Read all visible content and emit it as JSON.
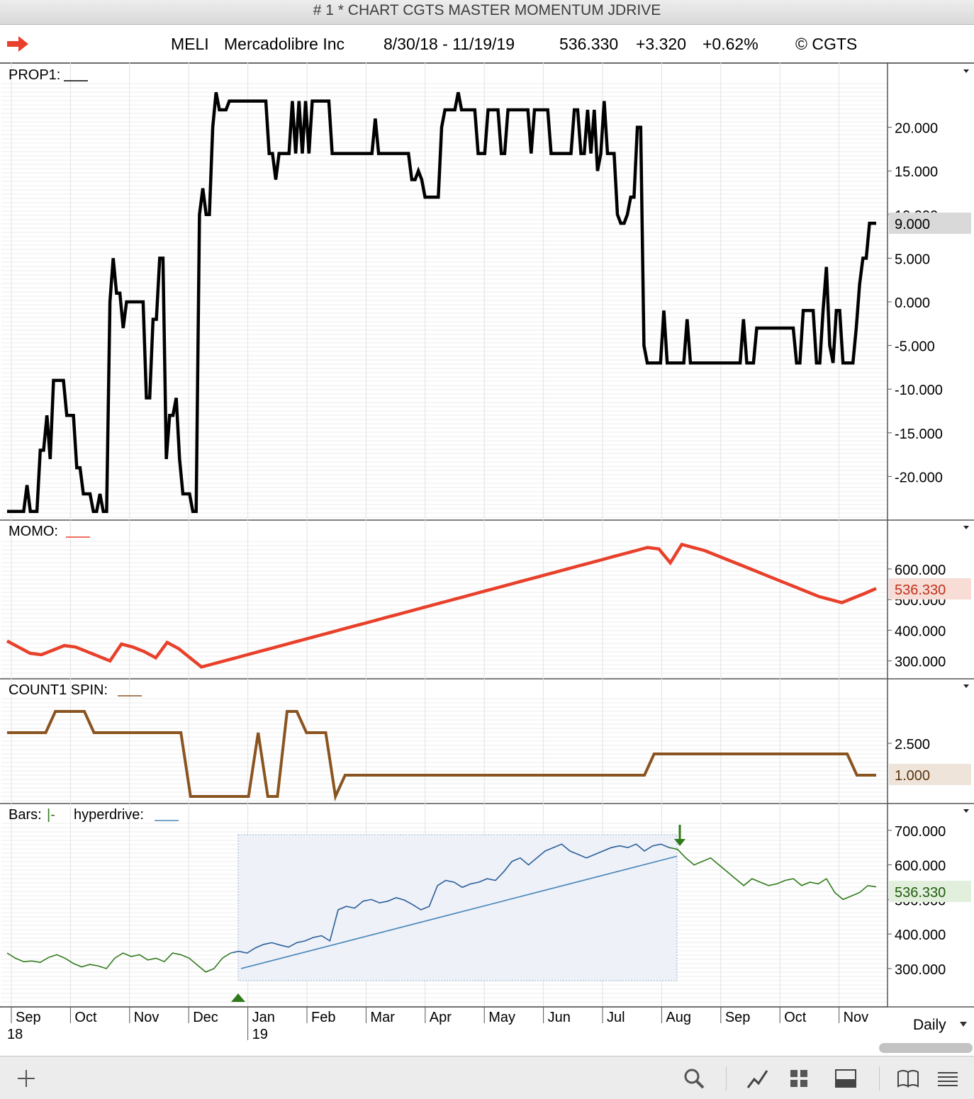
{
  "window": {
    "title": "# 1 * CHART CGTS MASTER MOMENTUM JDRIVE"
  },
  "header": {
    "symbol": "MELI",
    "company": "Mercadolibre Inc",
    "date_range": "8/30/18 - 11/19/19",
    "last_price": "536.330",
    "change": "+3.320",
    "change_pct": "+0.62%",
    "copyright": "© CGTS",
    "arrow_icon": "red-right-arrow-icon",
    "arrow_color": "#e8402a"
  },
  "panels": {
    "prop1": {
      "label": "PROP1:",
      "line_color": "#000000",
      "y_ticks": [
        "20.000",
        "15.000",
        "10.000",
        "5.000",
        "0.000",
        "-5.000",
        "-10.000",
        "-15.000",
        "-20.000"
      ],
      "y_tick_values": [
        20,
        15,
        10,
        5,
        0,
        -5,
        -10,
        -15,
        -20
      ],
      "current_value": "9.000"
    },
    "momo": {
      "label": "MOMO:",
      "line_color": "#e8402a",
      "y_ticks": [
        "600.000",
        "500.000",
        "400.000",
        "300.000"
      ],
      "y_tick_values": [
        600,
        500,
        400,
        300
      ],
      "current_value": "536.330"
    },
    "count1": {
      "label": "COUNT1 SPIN:",
      "line_color": "#8a5420",
      "y_ticks": [
        "2.500"
      ],
      "y_tick_values": [
        2.5
      ],
      "current_value": "1.000"
    },
    "bars": {
      "label": "Bars:",
      "bars_glyph": "|-",
      "overlay_label": "hyperdrive:",
      "overlay_color": "#4a87b8",
      "green_color": "#2f7a1a",
      "blue_color": "#2a5f99",
      "y_ticks": [
        "700.000",
        "600.000",
        "500.000",
        "400.000",
        "300.000"
      ],
      "y_tick_values": [
        700,
        600,
        500,
        400,
        300
      ],
      "current_value": "536.330"
    }
  },
  "x_axis": {
    "months": [
      "Sep",
      "Oct",
      "Nov",
      "Dec",
      "Jan",
      "Feb",
      "Mar",
      "Apr",
      "May",
      "Jun",
      "Jul",
      "Aug",
      "Sep",
      "Oct",
      "Nov"
    ],
    "years": [
      "18",
      "19"
    ],
    "period": "Daily"
  },
  "chart_data": [
    {
      "type": "line",
      "title": "PROP1",
      "series": [
        {
          "name": "PROP1",
          "values": [
            -24,
            -24,
            -24,
            -24,
            -24,
            -24,
            -21,
            -24,
            -24,
            -24,
            -17,
            -17,
            -13,
            -18,
            -9,
            -9,
            -9,
            -9,
            -13,
            -13,
            -13,
            -19,
            -19,
            -22,
            -22,
            -22,
            -24,
            -24,
            -22,
            -24,
            -24,
            0,
            5,
            1,
            1,
            -3,
            0,
            0,
            0,
            0,
            0,
            0,
            -11,
            -11,
            -2,
            -2,
            5,
            5,
            -18,
            -13,
            -13,
            -11,
            -18,
            -22,
            -22,
            -22,
            -24,
            -24,
            10,
            13,
            10,
            10,
            20,
            24,
            22,
            22,
            22,
            23,
            23,
            23,
            23,
            23,
            23,
            23,
            23,
            23,
            23,
            23,
            23,
            17,
            17,
            14,
            17,
            17,
            17,
            17,
            23,
            17,
            23,
            17,
            23,
            17,
            23,
            23,
            23,
            23,
            23,
            23,
            17,
            17,
            17,
            17,
            17,
            17,
            17,
            17,
            17,
            17,
            17,
            17,
            17,
            21,
            17,
            17,
            17,
            17,
            17,
            17,
            17,
            17,
            17,
            17,
            14,
            14,
            15,
            14,
            12,
            12,
            12,
            12,
            12,
            20,
            22,
            22,
            22,
            22,
            24,
            22,
            22,
            22,
            22,
            22,
            17,
            17,
            17,
            22,
            22,
            22,
            22,
            17,
            17,
            22,
            22,
            22,
            22,
            22,
            22,
            22,
            17,
            22,
            22,
            22,
            22,
            22,
            17,
            17,
            17,
            17,
            17,
            17,
            17,
            22,
            22,
            17,
            17,
            22,
            17,
            22,
            15,
            17,
            23,
            17,
            17,
            17,
            10,
            9,
            9,
            10,
            12,
            12,
            20,
            20,
            -5,
            -7,
            -7,
            -7,
            -7,
            -7,
            -1,
            -7,
            -7,
            -7,
            -7,
            -7,
            -7,
            -2,
            -7,
            -7,
            -7,
            -7,
            -7,
            -7,
            -7,
            -7,
            -7,
            -7,
            -7,
            -7,
            -7,
            -7,
            -7,
            -7,
            -2,
            -7,
            -7,
            -7,
            -3,
            -3,
            -3,
            -3,
            -3,
            -3,
            -3,
            -3,
            -3,
            -3,
            -3,
            -3,
            -7,
            -7,
            -1,
            -1,
            -1,
            -1,
            -7,
            -7,
            -1,
            4,
            -5,
            -7,
            -1,
            -1,
            -7,
            -7,
            -7,
            -7,
            -3,
            2,
            5,
            5,
            9,
            9,
            9
          ]
        }
      ],
      "ylim": [
        -25,
        25
      ]
    },
    {
      "type": "line",
      "title": "MOMO",
      "series": [
        {
          "name": "MOMO",
          "values": [
            365,
            345,
            325,
            320,
            335,
            350,
            345,
            330,
            315,
            300,
            355,
            345,
            330,
            310,
            360,
            340,
            310,
            280,
            290,
            300,
            310,
            320,
            330,
            340,
            350,
            360,
            370,
            380,
            390,
            400,
            410,
            420,
            430,
            440,
            450,
            460,
            470,
            480,
            490,
            500,
            510,
            520,
            530,
            540,
            550,
            560,
            570,
            580,
            590,
            600,
            610,
            620,
            630,
            640,
            650,
            660,
            670,
            665,
            620,
            680,
            670,
            660,
            645,
            630,
            615,
            600,
            585,
            570,
            555,
            540,
            525,
            510,
            500,
            490,
            505,
            520,
            536.33
          ]
        }
      ],
      "ylim": [
        260,
        690
      ]
    },
    {
      "type": "line",
      "title": "COUNT1 SPIN",
      "series": [
        {
          "name": "COUNT1 SPIN",
          "values": [
            3,
            3,
            3,
            3,
            3,
            4,
            4,
            4,
            4,
            3,
            3,
            3,
            3,
            3,
            3,
            3,
            3,
            3,
            3,
            0,
            0,
            0,
            0,
            0,
            0,
            0,
            3,
            0,
            0,
            4,
            4,
            3,
            3,
            3,
            0,
            1,
            1,
            1,
            1,
            1,
            1,
            1,
            1,
            1,
            1,
            1,
            1,
            1,
            1,
            1,
            1,
            1,
            1,
            1,
            1,
            1,
            1,
            1,
            1,
            1,
            1,
            1,
            1,
            1,
            1,
            1,
            1,
            2,
            2,
            2,
            2,
            2,
            2,
            2,
            2,
            2,
            2,
            2,
            2,
            2,
            2,
            2,
            2,
            2,
            2,
            2,
            2,
            2,
            1,
            1,
            1
          ]
        }
      ],
      "ylim": [
        -0.2,
        4.6
      ]
    },
    {
      "type": "line",
      "title": "Bars / hyperdrive",
      "series": [
        {
          "name": "Bars",
          "values": [
            345,
            330,
            320,
            322,
            318,
            332,
            340,
            330,
            315,
            305,
            312,
            308,
            300,
            330,
            345,
            335,
            340,
            325,
            330,
            320,
            345,
            340,
            330,
            310,
            290,
            300,
            330,
            345,
            350,
            345,
            360,
            370,
            375,
            368,
            362,
            375,
            380,
            390,
            395,
            380,
            470,
            480,
            475,
            495,
            500,
            490,
            495,
            505,
            498,
            485,
            470,
            480,
            540,
            555,
            550,
            535,
            545,
            550,
            560,
            555,
            580,
            610,
            620,
            600,
            620,
            640,
            650,
            660,
            640,
            630,
            620,
            630,
            640,
            650,
            655,
            650,
            660,
            640,
            655,
            660,
            650,
            645,
            620,
            600,
            610,
            620,
            600,
            580,
            560,
            540,
            560,
            550,
            540,
            545,
            555,
            560,
            540,
            550,
            545,
            560,
            520,
            500,
            510,
            520,
            540,
            536.33
          ]
        },
        {
          "name": "hyperdrive",
          "values": [
            300,
            320,
            340,
            360,
            380,
            400,
            420,
            440,
            460,
            480,
            500,
            520,
            540,
            560,
            580,
            600,
            620,
            625
          ]
        }
      ],
      "ylim": [
        220,
        720
      ]
    }
  ]
}
